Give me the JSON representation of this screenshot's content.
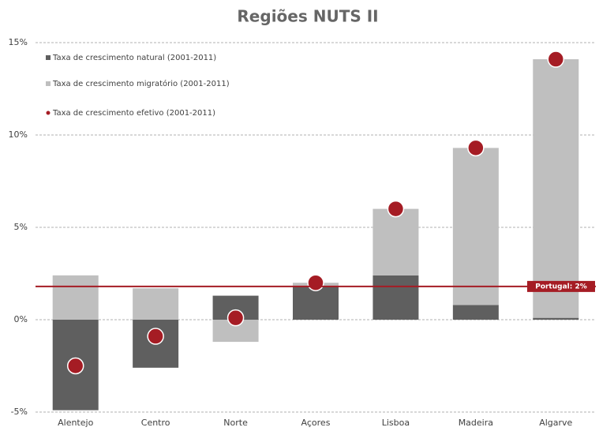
{
  "chart_data": {
    "type": "bar",
    "stacked": true,
    "title": "Regiões NUTS II",
    "categories": [
      "Alentejo",
      "Centro",
      "Norte",
      "Açores",
      "Lisboa",
      "Madeira",
      "Algarve"
    ],
    "series": [
      {
        "name": "Taxa de crescimento natural (2001-2011)",
        "color": "#5f5f5f",
        "type": "bar",
        "values": [
          -4.9,
          -2.6,
          1.3,
          1.8,
          2.4,
          0.8,
          0.1
        ]
      },
      {
        "name": "Taxa de crescimento migratório (2001-2011)",
        "color": "#bfbfbf",
        "type": "bar",
        "values": [
          2.4,
          1.7,
          -1.2,
          0.2,
          3.6,
          8.5,
          14.0
        ]
      },
      {
        "name": "Taxa de crescimento efetivo (2001-2011)",
        "color": "#a51c24",
        "type": "scatter",
        "values": [
          -2.5,
          -0.9,
          0.1,
          2.0,
          6.0,
          9.3,
          14.1
        ]
      }
    ],
    "ylim": [
      -5,
      15
    ],
    "yticks": [
      {
        "value": -5,
        "label": "-5%"
      },
      {
        "value": 0,
        "label": "0%"
      },
      {
        "value": 5,
        "label": "5%"
      },
      {
        "value": 10,
        "label": "10%"
      },
      {
        "value": 15,
        "label": "15%"
      }
    ],
    "grid": true,
    "legend": "top-left",
    "reference_line": {
      "value": 1.8,
      "label": "Portugal: 2%",
      "color": "#a51c24"
    }
  }
}
